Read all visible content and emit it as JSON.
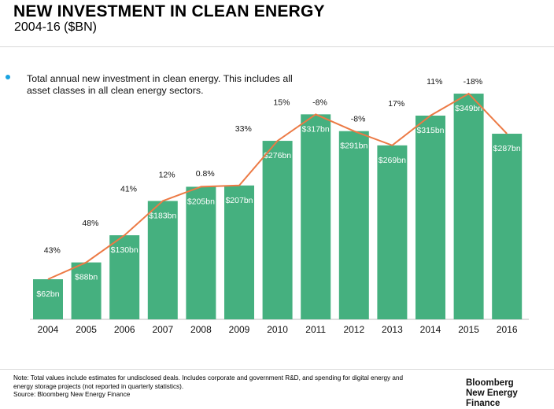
{
  "header": {
    "title": "NEW INVESTMENT IN CLEAN ENERGY",
    "subtitle": "2004-16 ($BN)"
  },
  "description": "Total annual new investment in clean energy. This includes all asset classes in all clean energy sectors.",
  "footer": {
    "note": "Note: Total values include estimates for undisclosed deals. Includes corporate and government R&D, and spending for digital energy and energy storage projects (not reported in quarterly statistics).",
    "source": "Source: Bloomberg New Energy Finance",
    "brand_line1": "Bloomberg",
    "brand_line2": "New Energy Finance"
  },
  "colors": {
    "bar": "#45b07f",
    "line": "#ec7a45",
    "bullet": "#1aa3e0"
  },
  "chart_data": {
    "type": "bar",
    "categories": [
      "2004",
      "2005",
      "2006",
      "2007",
      "2008",
      "2009",
      "2010",
      "2011",
      "2012",
      "2013",
      "2014",
      "2015",
      "2016"
    ],
    "values": [
      62,
      88,
      130,
      183,
      205,
      207,
      276,
      317,
      291,
      269,
      315,
      349,
      287
    ],
    "bar_labels": [
      "$62bn",
      "$88bn",
      "$130bn",
      "$183bn",
      "$205bn",
      "$207bn",
      "$276bn",
      "$317bn",
      "$291bn",
      "$269bn",
      "$315bn",
      "$349bn",
      "$287bn"
    ],
    "growth_labels": [
      "43%",
      "48%",
      "41%",
      "12%",
      "0.8%",
      "33%",
      "15%",
      "-8%",
      "-8%",
      "17%",
      "11%",
      "-18%"
    ],
    "overlay": "line through bar tops",
    "ylim": [
      0,
      360
    ],
    "grid": false,
    "legend": "none"
  }
}
